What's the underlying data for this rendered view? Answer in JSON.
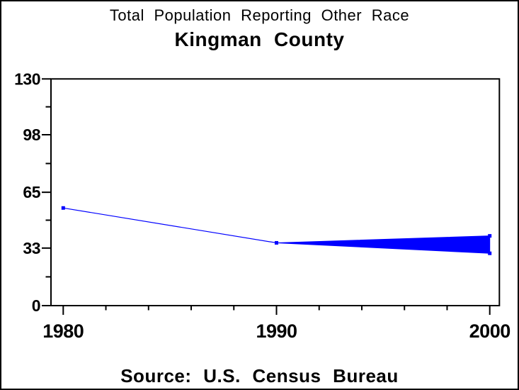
{
  "figure": {
    "title": "Total Population Reporting Other Race",
    "subtitle": "Kingman County",
    "source_note": "Source: U.S. Census Bureau"
  },
  "colors": {
    "series": "#0000ff",
    "axis": "#000000",
    "background": "#ffffff",
    "text": "#000000"
  },
  "chart_data": {
    "type": "line",
    "title": "Total Population Reporting Other Race",
    "subtitle": "Kingman County",
    "source_note": "Source: U.S. Census Bureau",
    "xlabel": "",
    "ylabel": "",
    "grid": false,
    "legend_position": "none",
    "xlim": [
      1979.4,
      2000.45
    ],
    "ylim": [
      0,
      130
    ],
    "x_major_ticks": [
      1980,
      1990,
      2000
    ],
    "x_minor_ticks": [
      1982,
      1984,
      1986,
      1988,
      1992,
      1994,
      1996,
      1998
    ],
    "y_major_ticks": [
      0,
      33,
      65,
      98,
      130
    ],
    "y_minor_ticks": [
      16.5,
      49,
      81.5,
      114
    ],
    "series": [
      {
        "name": "historical-population",
        "style": "thin-line-with-square-markers",
        "color": "#0000ff",
        "points": [
          {
            "x": 1980,
            "y": 56
          },
          {
            "x": 1990,
            "y": 36
          }
        ]
      }
    ],
    "projection_fan": {
      "name": "projection-uncertainty-wedge",
      "color": "#0000ff",
      "apex": {
        "x": 1990,
        "y": 36
      },
      "end_x": 2000,
      "end_low": 30,
      "end_high": 40
    }
  }
}
